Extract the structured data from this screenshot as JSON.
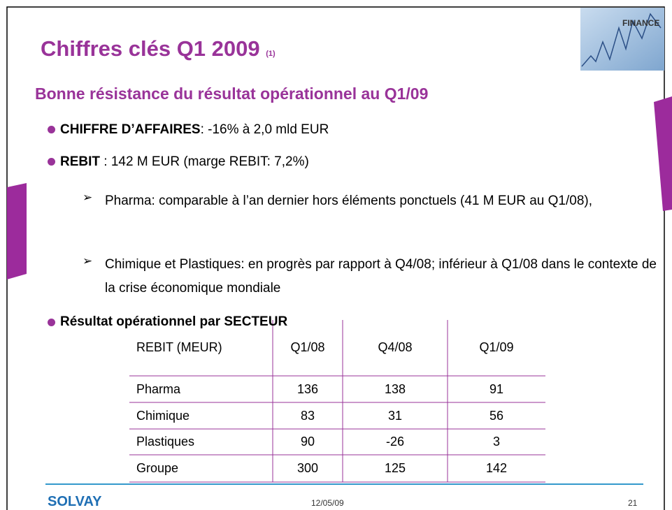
{
  "header": {
    "title": "Chiffres clés Q1 2009",
    "title_note": "(1)",
    "badge": "FINANCE"
  },
  "subtitle": "Bonne résistance du résultat opérationnel au Q1/09",
  "bullets": [
    {
      "bold": "CHIFFRE D’AFFAIRES",
      "text": ": -16% à 2,0 mld EUR"
    },
    {
      "bold": "REBIT",
      "text": " : 142 M EUR (marge REBIT: 7,2%)"
    }
  ],
  "sub_bullets": [
    "Pharma: comparable à l’an dernier hors éléments ponctuels (41 M EUR au Q1/08),",
    "Chimique et Plastiques: en progrès par rapport à Q4/08; inférieur à Q1/08 dans le contexte de la crise économique mondiale"
  ],
  "table_heading": "Résultat opérationnel par SECTEUR",
  "table": {
    "header": [
      "REBIT (MEUR)",
      "Q1/08",
      "Q4/08",
      "Q1/09"
    ],
    "rows": [
      [
        "Pharma",
        136,
        138,
        91
      ],
      [
        "Chimique",
        83,
        31,
        56
      ],
      [
        "Plastiques",
        90,
        -26,
        3
      ],
      [
        "Groupe",
        300,
        125,
        142
      ]
    ]
  },
  "footer": {
    "logo": "SOLVAY",
    "date": "12/05/09",
    "page": "21"
  }
}
